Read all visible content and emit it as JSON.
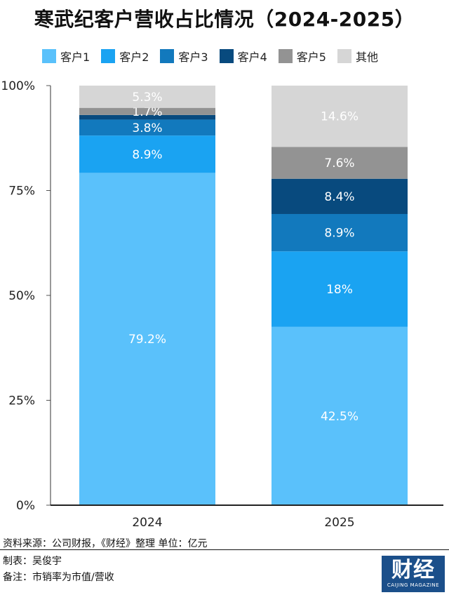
{
  "title": "寒武纪客户营收占比情况（2024-2025）",
  "legend": [
    {
      "label": "客户1",
      "color": "#5ac1fb"
    },
    {
      "label": "客户2",
      "color": "#1aa3f2"
    },
    {
      "label": "客户3",
      "color": "#1279bd"
    },
    {
      "label": "客户4",
      "color": "#084a7e"
    },
    {
      "label": "客户5",
      "color": "#939393"
    },
    {
      "label": "其他",
      "color": "#d6d6d6"
    }
  ],
  "chart_data": {
    "type": "bar",
    "stacked": true,
    "categories": [
      "2024",
      "2025"
    ],
    "series": [
      {
        "name": "客户1",
        "values": [
          79.2,
          42.5
        ],
        "labels": [
          "79.2%",
          "42.5%"
        ],
        "color": "#5ac1fb"
      },
      {
        "name": "客户2",
        "values": [
          8.9,
          18
        ],
        "labels": [
          "8.9%",
          "18%"
        ],
        "color": "#1aa3f2"
      },
      {
        "name": "客户3",
        "values": [
          3.8,
          8.9
        ],
        "labels": [
          "3.8%",
          "8.9%"
        ],
        "color": "#1279bd"
      },
      {
        "name": "客户4",
        "values": [
          1.1,
          8.4
        ],
        "labels": [
          "",
          "8.4%"
        ],
        "color": "#084a7e"
      },
      {
        "name": "客户5",
        "values": [
          1.7,
          7.6
        ],
        "labels": [
          "1.7%",
          "7.6%"
        ],
        "color": "#939393"
      },
      {
        "name": "其他",
        "values": [
          5.3,
          14.6
        ],
        "labels": [
          "5.3%",
          "14.6%"
        ],
        "color": "#d6d6d6"
      }
    ],
    "ylim": [
      0,
      100
    ],
    "yticks": [
      "0%",
      "25%",
      "50%",
      "75%",
      "100%"
    ],
    "grid": false,
    "legend_position": "top"
  },
  "footer": {
    "source": "资料来源：公司财报，《财经》整理   单位：亿元",
    "author": "制表：吴俊宇",
    "note": "备注：市销率为市值/营收"
  },
  "logo": {
    "main": "财经",
    "sub": "CAIJING MAGAZINE"
  }
}
